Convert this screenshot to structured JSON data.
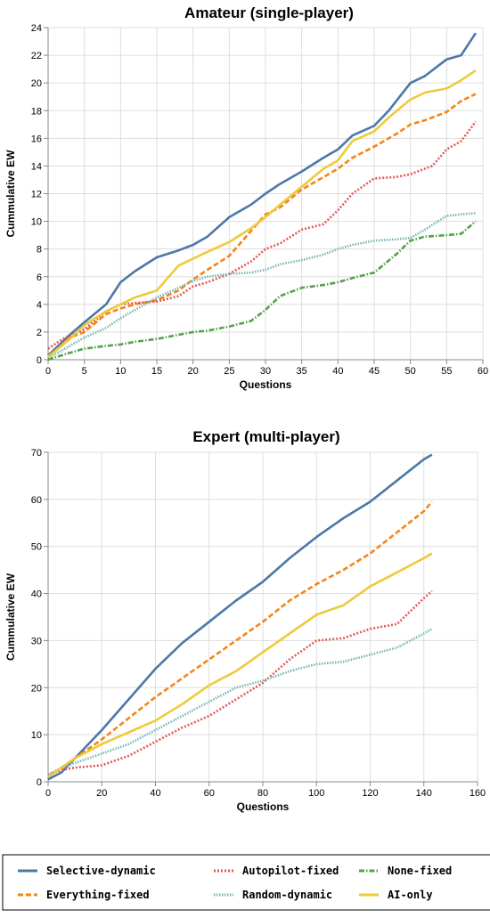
{
  "chart_data": [
    {
      "type": "line",
      "title": "Amateur (single-player)",
      "xlabel": "Questions",
      "ylabel": "Cummulative EW",
      "xlim": [
        0,
        60
      ],
      "ylim": [
        0,
        24
      ],
      "xticks": [
        0,
        5,
        10,
        15,
        20,
        25,
        30,
        35,
        40,
        45,
        50,
        55,
        60
      ],
      "yticks": [
        0,
        2,
        4,
        6,
        8,
        10,
        12,
        14,
        16,
        18,
        20,
        22,
        24
      ],
      "grid": true,
      "series": [
        {
          "name": "Selective-dynamic",
          "color": "#4c78a8",
          "dash": "solid",
          "x": [
            0,
            3,
            5,
            8,
            10,
            12,
            15,
            18,
            20,
            22,
            25,
            28,
            30,
            32,
            35,
            38,
            40,
            42,
            45,
            47,
            50,
            52,
            55,
            57,
            59
          ],
          "y": [
            0.3,
            1.8,
            2.7,
            4.0,
            5.6,
            6.4,
            7.4,
            7.9,
            8.3,
            8.9,
            10.3,
            11.2,
            12.0,
            12.7,
            13.6,
            14.6,
            15.2,
            16.2,
            16.9,
            18.0,
            20.0,
            20.5,
            21.7,
            22.0,
            23.6
          ]
        },
        {
          "name": "Everything-fixed",
          "color": "#f58518",
          "dash": "dashed",
          "x": [
            0,
            3,
            5,
            8,
            10,
            12,
            15,
            18,
            20,
            22,
            25,
            28,
            30,
            32,
            35,
            38,
            40,
            42,
            45,
            48,
            50,
            52,
            55,
            57,
            59
          ],
          "y": [
            0.2,
            1.6,
            2.0,
            3.3,
            3.7,
            4.0,
            4.3,
            5.0,
            5.8,
            6.5,
            7.5,
            9.3,
            10.5,
            11.0,
            12.3,
            13.2,
            13.8,
            14.6,
            15.4,
            16.3,
            17.0,
            17.3,
            17.9,
            18.7,
            19.2
          ]
        },
        {
          "name": "Autopilot-fixed",
          "color": "#e45756",
          "dash": "dotted",
          "x": [
            0,
            2,
            5,
            8,
            10,
            12,
            15,
            18,
            20,
            22,
            25,
            28,
            30,
            32,
            35,
            38,
            40,
            42,
            45,
            48,
            50,
            53,
            55,
            57,
            59
          ],
          "y": [
            0.8,
            1.5,
            2.2,
            3.5,
            4.0,
            4.1,
            4.2,
            4.6,
            5.3,
            5.6,
            6.2,
            7.1,
            8.0,
            8.4,
            9.4,
            9.8,
            10.8,
            12.0,
            13.1,
            13.2,
            13.4,
            14.0,
            15.2,
            15.8,
            17.2
          ]
        },
        {
          "name": "Random-dynamic",
          "color": "#72b7b2",
          "dash": "dotted-fine",
          "x": [
            0,
            3,
            5,
            8,
            10,
            12,
            15,
            18,
            20,
            22,
            25,
            28,
            30,
            32,
            35,
            38,
            40,
            42,
            45,
            48,
            50,
            52,
            55,
            57,
            59
          ],
          "y": [
            0.1,
            1.0,
            1.6,
            2.3,
            3.0,
            3.6,
            4.5,
            5.2,
            5.7,
            6.0,
            6.2,
            6.3,
            6.5,
            6.9,
            7.2,
            7.6,
            8.0,
            8.3,
            8.6,
            8.7,
            8.8,
            9.4,
            10.4,
            10.5,
            10.6
          ]
        },
        {
          "name": "None-fixed",
          "color": "#54a24b",
          "dash": "dash-dot",
          "x": [
            0,
            3,
            5,
            8,
            10,
            12,
            15,
            18,
            20,
            22,
            25,
            28,
            30,
            32,
            35,
            38,
            40,
            42,
            45,
            48,
            50,
            52,
            55,
            57,
            59
          ],
          "y": [
            0.0,
            0.5,
            0.8,
            1.0,
            1.1,
            1.3,
            1.5,
            1.8,
            2.0,
            2.1,
            2.4,
            2.8,
            3.6,
            4.6,
            5.2,
            5.4,
            5.6,
            5.9,
            6.3,
            7.6,
            8.6,
            8.9,
            9.0,
            9.1,
            10.0
          ]
        },
        {
          "name": "AI-only",
          "color": "#eeca3b",
          "dash": "solid",
          "x": [
            0,
            3,
            5,
            8,
            10,
            12,
            15,
            18,
            20,
            22,
            25,
            28,
            30,
            32,
            35,
            38,
            40,
            42,
            45,
            47,
            50,
            52,
            55,
            57,
            59
          ],
          "y": [
            0.2,
            1.5,
            2.5,
            3.5,
            4.0,
            4.5,
            5.0,
            6.8,
            7.3,
            7.8,
            8.5,
            9.5,
            10.3,
            11.2,
            12.5,
            13.8,
            14.4,
            15.8,
            16.5,
            17.5,
            18.8,
            19.3,
            19.6,
            20.2,
            20.9
          ]
        }
      ]
    },
    {
      "type": "line",
      "title": "Expert (multi-player)",
      "xlabel": "Questions",
      "ylabel": "Cummulative EW",
      "xlim": [
        0,
        160
      ],
      "ylim": [
        0,
        70
      ],
      "xticks": [
        0,
        20,
        40,
        60,
        80,
        100,
        120,
        140,
        160
      ],
      "yticks": [
        0,
        10,
        20,
        30,
        40,
        50,
        60,
        70
      ],
      "grid": true,
      "series": [
        {
          "name": "Selective-dynamic",
          "color": "#4c78a8",
          "dash": "solid",
          "x": [
            0,
            5,
            10,
            20,
            30,
            40,
            50,
            60,
            70,
            80,
            90,
            100,
            110,
            120,
            130,
            140,
            143
          ],
          "y": [
            0.5,
            2.0,
            5.0,
            11.0,
            17.5,
            24.0,
            29.5,
            34.0,
            38.5,
            42.5,
            47.5,
            52.0,
            56.0,
            59.5,
            64.0,
            68.5,
            69.5
          ]
        },
        {
          "name": "Everything-fixed",
          "color": "#f58518",
          "dash": "dashed",
          "x": [
            0,
            5,
            10,
            20,
            30,
            40,
            50,
            60,
            70,
            80,
            90,
            100,
            110,
            120,
            130,
            140,
            143
          ],
          "y": [
            1.0,
            3.0,
            5.0,
            9.0,
            13.5,
            18.0,
            22.0,
            26.0,
            30.0,
            34.0,
            38.5,
            42.0,
            45.0,
            48.5,
            53.0,
            57.5,
            59.5
          ]
        },
        {
          "name": "Autopilot-fixed",
          "color": "#e45756",
          "dash": "dotted",
          "x": [
            0,
            5,
            10,
            20,
            30,
            40,
            50,
            60,
            70,
            80,
            90,
            100,
            110,
            120,
            130,
            140,
            143
          ],
          "y": [
            1.5,
            2.5,
            3.0,
            3.5,
            5.5,
            8.5,
            11.5,
            14.0,
            17.5,
            21.0,
            26.0,
            30.0,
            30.5,
            32.5,
            33.5,
            39.0,
            40.5
          ]
        },
        {
          "name": "Random-dynamic",
          "color": "#72b7b2",
          "dash": "dotted-fine",
          "x": [
            0,
            5,
            10,
            20,
            30,
            40,
            50,
            60,
            70,
            80,
            90,
            100,
            110,
            120,
            130,
            140,
            143
          ],
          "y": [
            1.5,
            3.0,
            4.0,
            6.0,
            8.0,
            11.0,
            14.0,
            17.0,
            20.0,
            21.5,
            23.5,
            25.0,
            25.5,
            27.0,
            28.5,
            31.5,
            32.5
          ]
        },
        {
          "name": "AI-only",
          "color": "#eeca3b",
          "dash": "solid",
          "x": [
            0,
            5,
            10,
            20,
            30,
            40,
            50,
            60,
            70,
            80,
            90,
            100,
            110,
            120,
            130,
            140,
            143
          ],
          "y": [
            1.0,
            3.0,
            5.0,
            8.0,
            10.5,
            13.0,
            16.5,
            20.5,
            23.5,
            27.5,
            31.5,
            35.5,
            37.5,
            41.5,
            44.5,
            47.5,
            48.5
          ]
        }
      ]
    }
  ],
  "legend": {
    "placement": "bottom",
    "items": [
      {
        "label": "Selective-dynamic",
        "color": "#4c78a8",
        "dash": "solid"
      },
      {
        "label": "Autopilot-fixed",
        "color": "#e45756",
        "dash": "dotted"
      },
      {
        "label": "None-fixed",
        "color": "#54a24b",
        "dash": "dash-dot"
      },
      {
        "label": "Everything-fixed",
        "color": "#f58518",
        "dash": "dashed"
      },
      {
        "label": "Random-dynamic",
        "color": "#72b7b2",
        "dash": "dotted-fine"
      },
      {
        "label": "AI-only",
        "color": "#eeca3b",
        "dash": "solid"
      }
    ]
  }
}
